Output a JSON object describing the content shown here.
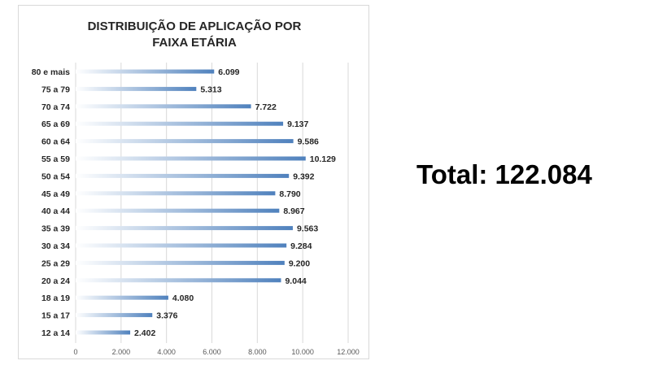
{
  "chart_data": {
    "type": "bar",
    "orientation": "horizontal",
    "title_lines": [
      "DISTRIBUIÇÃO DE APLICAÇÃO POR",
      "FAIXA ETÁRIA"
    ],
    "categories": [
      "80 e mais",
      "75 a 79",
      "70 a 74",
      "65 a 69",
      "60 a 64",
      "55 a 59",
      "50 a 54",
      "45 a 49",
      "40 a 44",
      "35 a 39",
      "30 a 34",
      "25 a 29",
      "20 a 24",
      "18 a 19",
      "15 a 17",
      "12 a 14"
    ],
    "values": [
      6099,
      5313,
      7722,
      9137,
      9586,
      10129,
      9392,
      8790,
      8967,
      9563,
      9284,
      9200,
      9044,
      4080,
      3376,
      2402
    ],
    "value_labels": [
      "6.099",
      "5.313",
      "7.722",
      "9.137",
      "9.586",
      "10.129",
      "9.392",
      "8.790",
      "8.967",
      "9.563",
      "9.284",
      "9.200",
      "9.044",
      "4.080",
      "3.376",
      "2.402"
    ],
    "x_ticks": [
      0,
      2000,
      4000,
      6000,
      8000,
      10000,
      12000
    ],
    "x_tick_labels": [
      "0",
      "2.000",
      "4.000",
      "6.000",
      "8.000",
      "10.000",
      "12.000"
    ],
    "xlim": [
      0,
      12000
    ],
    "grid": "vertical",
    "bar_color": "#4f81bd",
    "bar_gradient_start": "#ffffff"
  },
  "total_text": "Total: 122.084"
}
